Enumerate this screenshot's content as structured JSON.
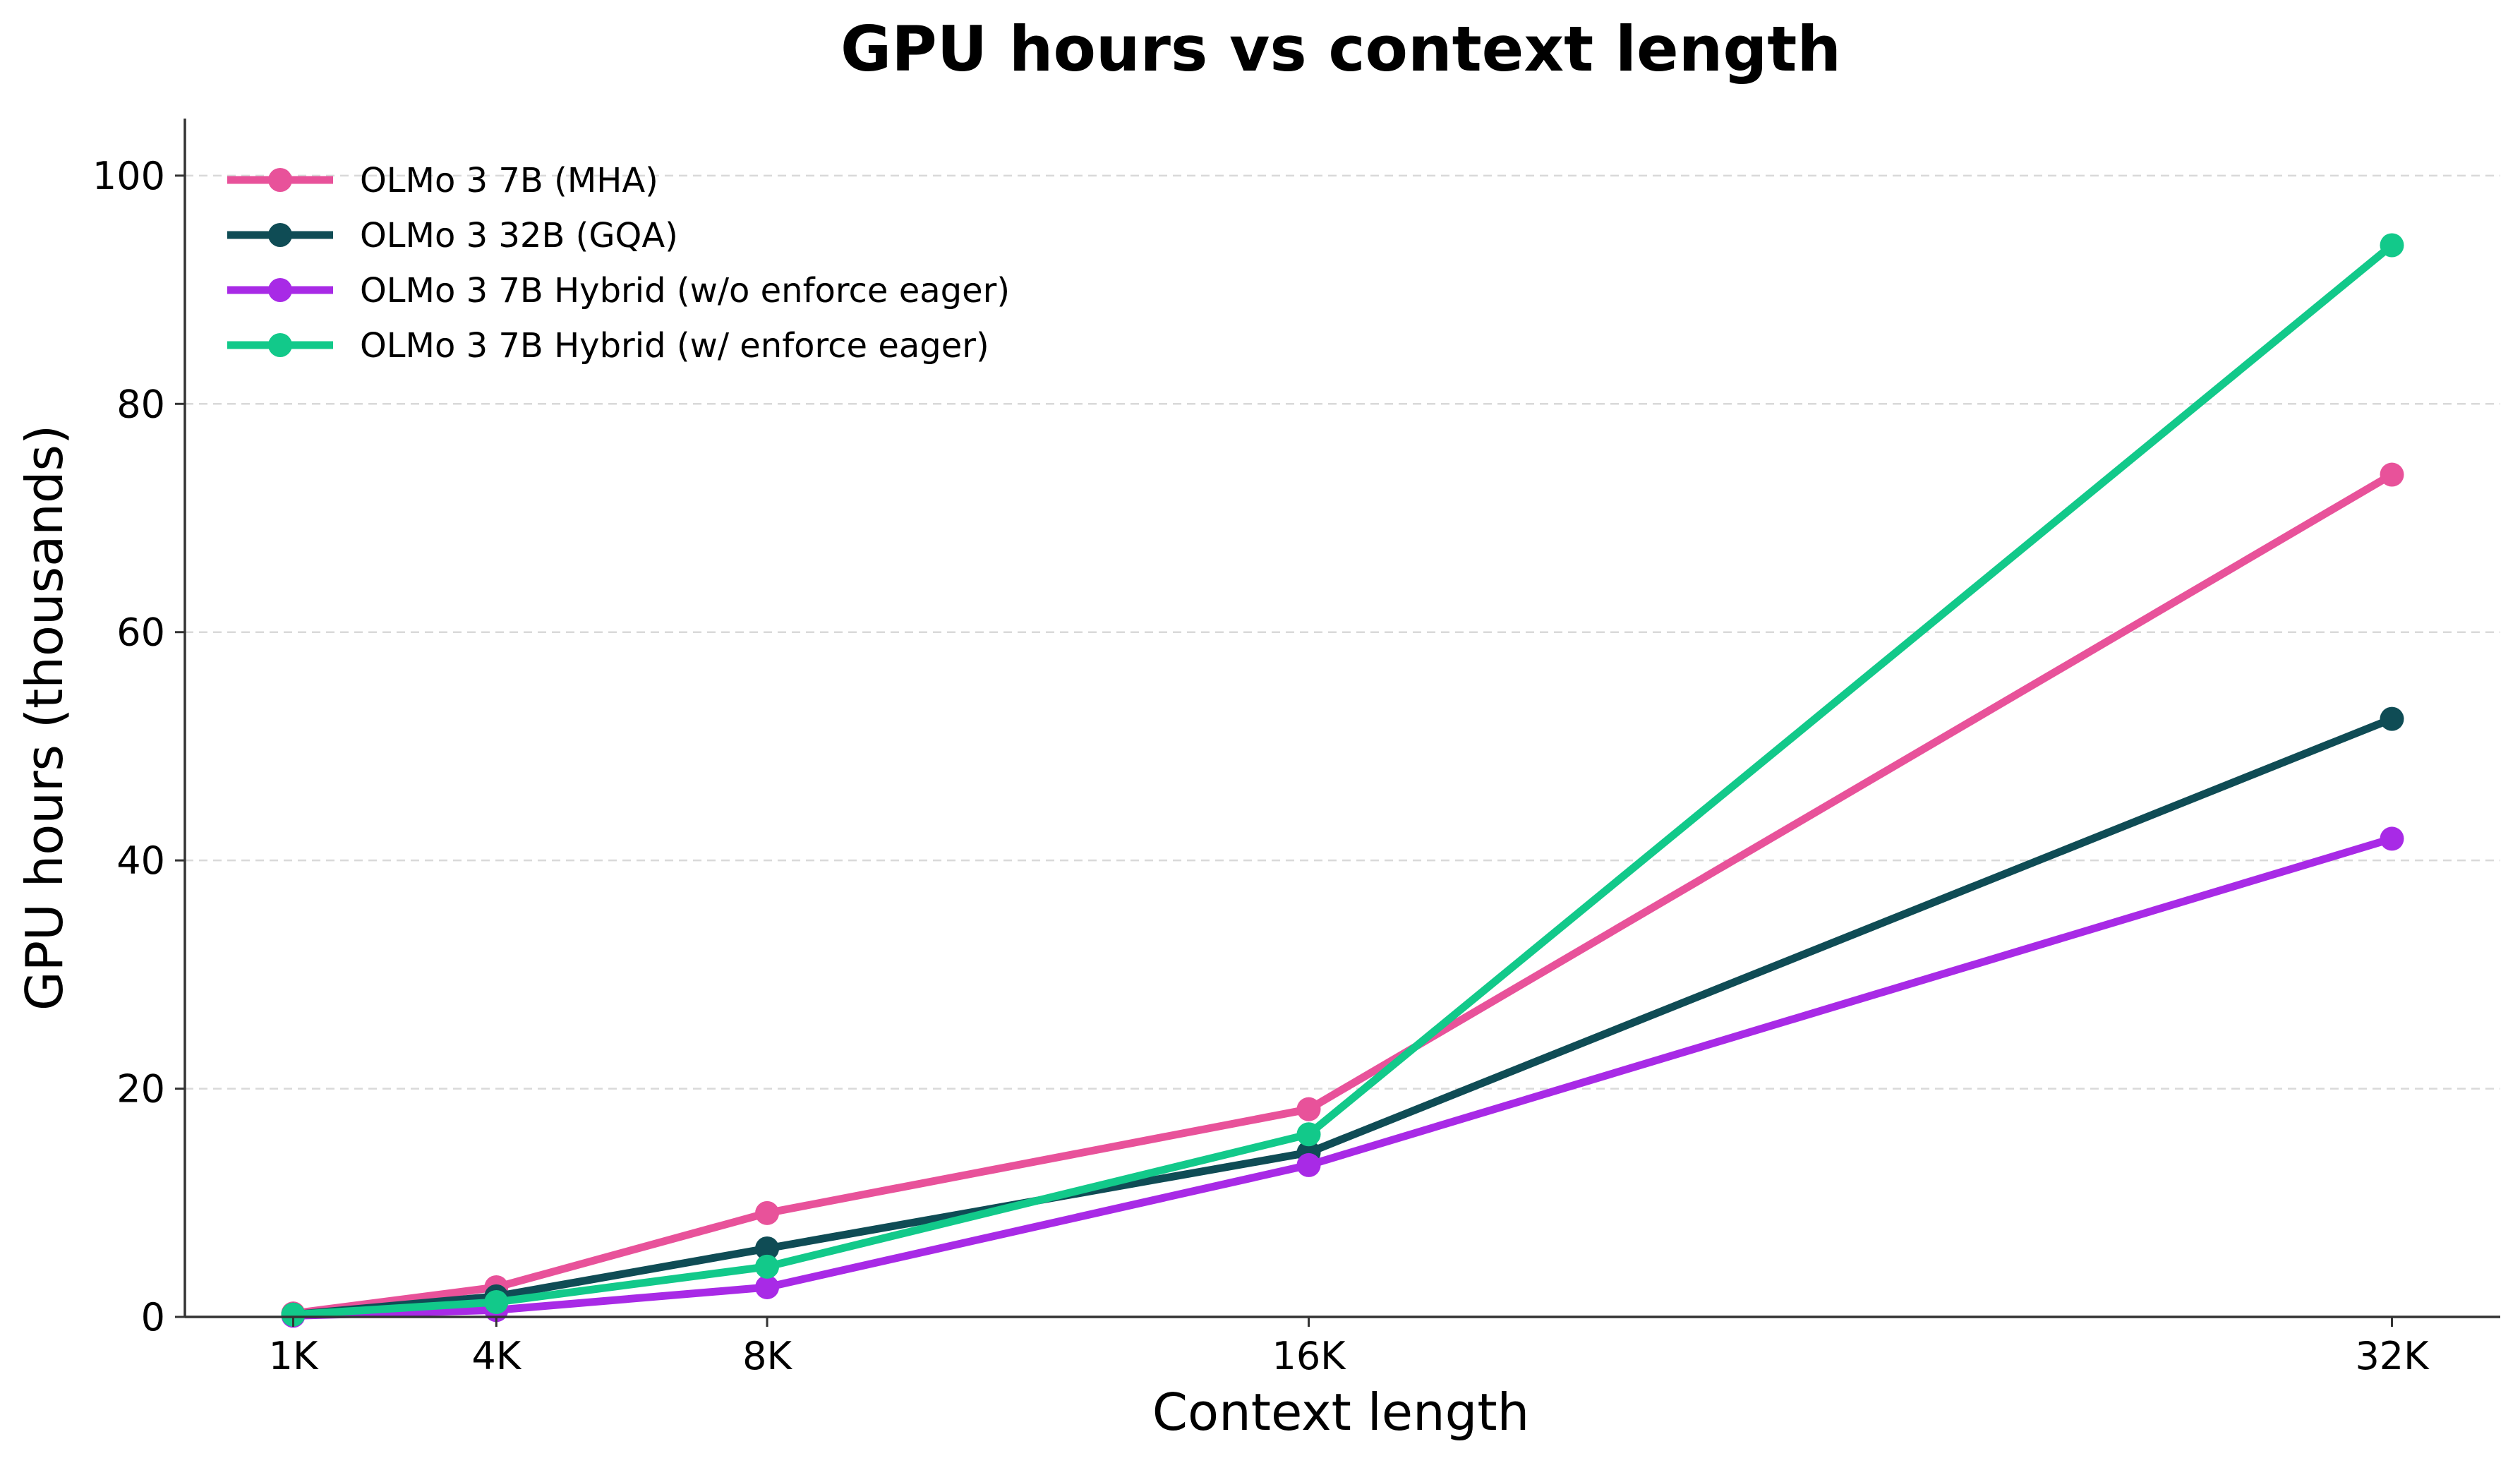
{
  "chart_data": {
    "type": "line",
    "title": "GPU hours vs context length",
    "xlabel": "Context length",
    "ylabel": "GPU hours (thousands)",
    "x": [
      1,
      4,
      8,
      16,
      32
    ],
    "x_tick_labels": [
      "1K",
      "4K",
      "8K",
      "16K",
      "32K"
    ],
    "xlim": [
      -0.6,
      33.6
    ],
    "ylim": [
      0,
      105
    ],
    "y_ticks": [
      0,
      20,
      40,
      60,
      80,
      100
    ],
    "grid": "y-dashed",
    "legend_position": "top-left",
    "series": [
      {
        "name": "OLMo 3 7B (MHA)",
        "color": "#e8529a",
        "values": [
          0.3,
          2.6,
          9.1,
          18.2,
          73.8
        ]
      },
      {
        "name": "OLMo 3 32B (GQA)",
        "color": "#0f4c55",
        "values": [
          0.2,
          1.8,
          6.0,
          14.4,
          52.4
        ]
      },
      {
        "name": "OLMo 3 7B Hybrid (w/o enforce eager)",
        "color": "#a82ae6",
        "values": [
          0.1,
          0.6,
          2.6,
          13.3,
          41.9
        ]
      },
      {
        "name": "OLMo 3 7B Hybrid (w/ enforce eager)",
        "color": "#12c98a",
        "values": [
          0.2,
          1.3,
          4.4,
          16.0,
          93.9
        ]
      }
    ]
  }
}
